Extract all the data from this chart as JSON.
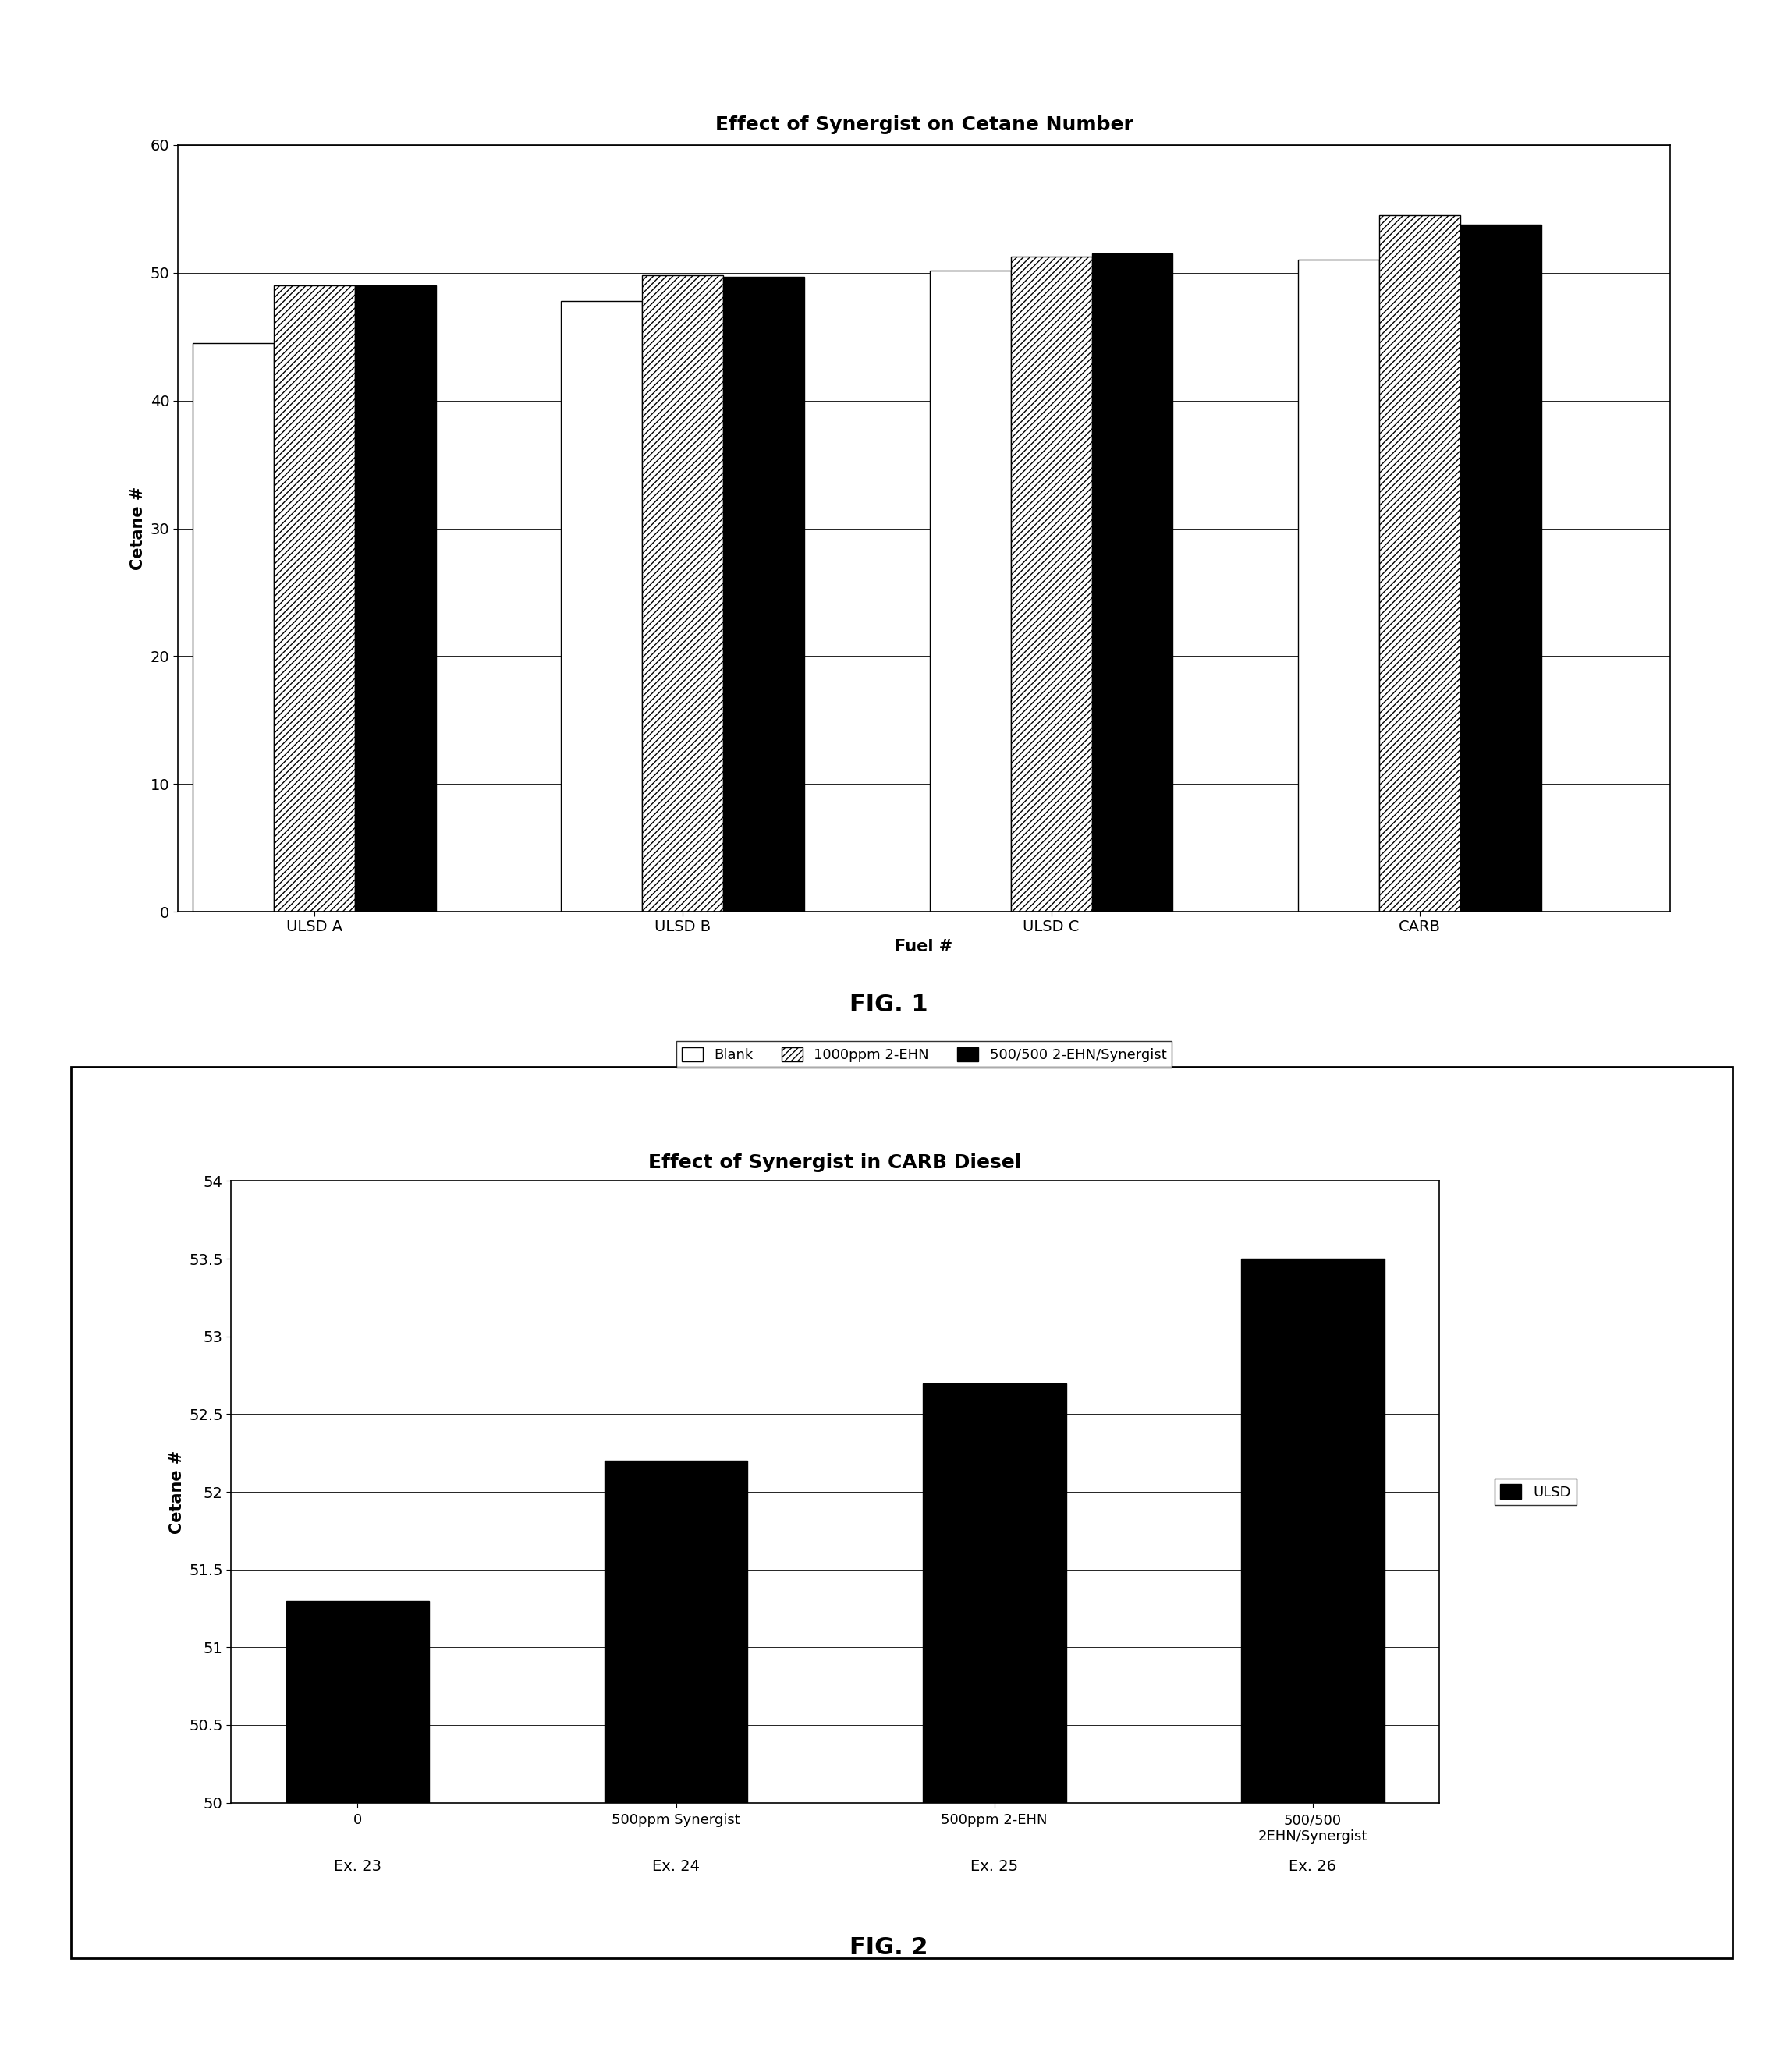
{
  "fig1": {
    "title": "Effect of Synergist on Cetane Number",
    "xlabel": "Fuel #",
    "ylabel": "Cetane #",
    "ylim": [
      0,
      60
    ],
    "yticks": [
      0,
      10,
      20,
      30,
      40,
      50,
      60
    ],
    "categories": [
      "ULSD A",
      "ULSD B",
      "ULSD C",
      "CARB"
    ],
    "series_order": [
      "Blank",
      "1000ppm 2-EHN",
      "500/500 2-EHN/Synergist"
    ],
    "series": {
      "Blank": {
        "values": [
          44.5,
          47.8,
          50.2,
          51.0
        ],
        "color": "white",
        "edgecolor": "black",
        "hatch": ""
      },
      "1000ppm 2-EHN": {
        "values": [
          49.0,
          49.8,
          51.3,
          54.5
        ],
        "color": "white",
        "edgecolor": "black",
        "hatch": "////"
      },
      "500/500 2-EHN/Synergist": {
        "values": [
          49.0,
          49.7,
          51.5,
          53.8
        ],
        "color": "black",
        "edgecolor": "black",
        "hatch": ""
      }
    },
    "legend_labels": [
      "Blank",
      "1000ppm 2-EHN",
      "500/500 2-EHN/Synergist"
    ],
    "fig_label": "FIG. 1",
    "title_fontsize": 18,
    "label_fontsize": 15,
    "tick_fontsize": 14,
    "legend_fontsize": 13
  },
  "fig2": {
    "title": "Effect of Synergist in CARB Diesel",
    "ylabel": "Cetane #",
    "ylim": [
      50,
      54
    ],
    "yticks": [
      50,
      50.5,
      51,
      51.5,
      52,
      52.5,
      53,
      53.5,
      54
    ],
    "cat_labels": [
      "0",
      "500ppm Synergist",
      "500ppm 2-EHN",
      "500/500\n2EHN/Synergist"
    ],
    "ex_labels": [
      "Ex. 23",
      "Ex. 24",
      "Ex. 25",
      "Ex. 26"
    ],
    "values": [
      51.3,
      52.2,
      52.7,
      53.5
    ],
    "bar_color": "black",
    "edgecolor": "black",
    "legend_label": "ULSD",
    "legend_color": "black",
    "fig_label": "FIG. 2",
    "title_fontsize": 18,
    "label_fontsize": 15,
    "tick_fontsize": 14,
    "legend_fontsize": 13
  },
  "background_color": "white",
  "page_background": "white"
}
